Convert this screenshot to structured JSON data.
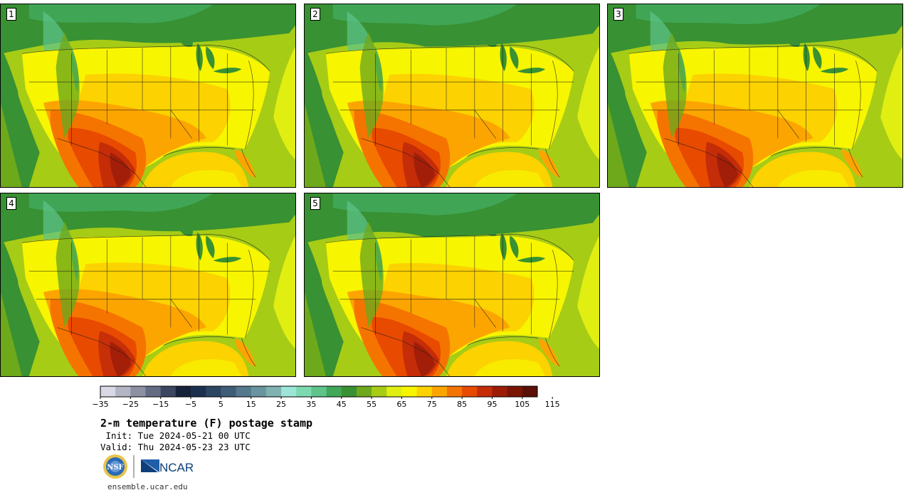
{
  "panels": [
    {
      "label": "1"
    },
    {
      "label": "2"
    },
    {
      "label": "3"
    },
    {
      "label": "4"
    },
    {
      "label": "5"
    }
  ],
  "colorbar": {
    "colors": [
      "#d9d9e6",
      "#b3b5c5",
      "#8c90a3",
      "#646c84",
      "#3d4660",
      "#16213a",
      "#1d2f4f",
      "#2a4662",
      "#3d5d78",
      "#55788c",
      "#6a959f",
      "#7fb2b1",
      "#9de6d7",
      "#7dd9b0",
      "#5ec48b",
      "#41a85a",
      "#389132",
      "#6ea91c",
      "#a7cc16",
      "#e0ee12",
      "#f7f500",
      "#fcd200",
      "#fca500",
      "#f57400",
      "#e84a00",
      "#c42d08",
      "#9c1c08",
      "#7a1506",
      "#5a1006"
    ],
    "tick_labels": [
      "−35",
      "−25",
      "−15",
      "−5",
      "5",
      "15",
      "25",
      "35",
      "45",
      "55",
      "65",
      "75",
      "85",
      "95",
      "105",
      "115"
    ]
  },
  "title": "2-m temperature (F) postage stamp",
  "init_line": " Init: Tue 2024-05-21 00 UTC",
  "valid_line": "Valid: Thu 2024-05-23 23 UTC",
  "logos": {
    "nsf": "NSF",
    "ncar": "NCAR"
  },
  "footer_link": "ensemble.ucar.edu"
}
